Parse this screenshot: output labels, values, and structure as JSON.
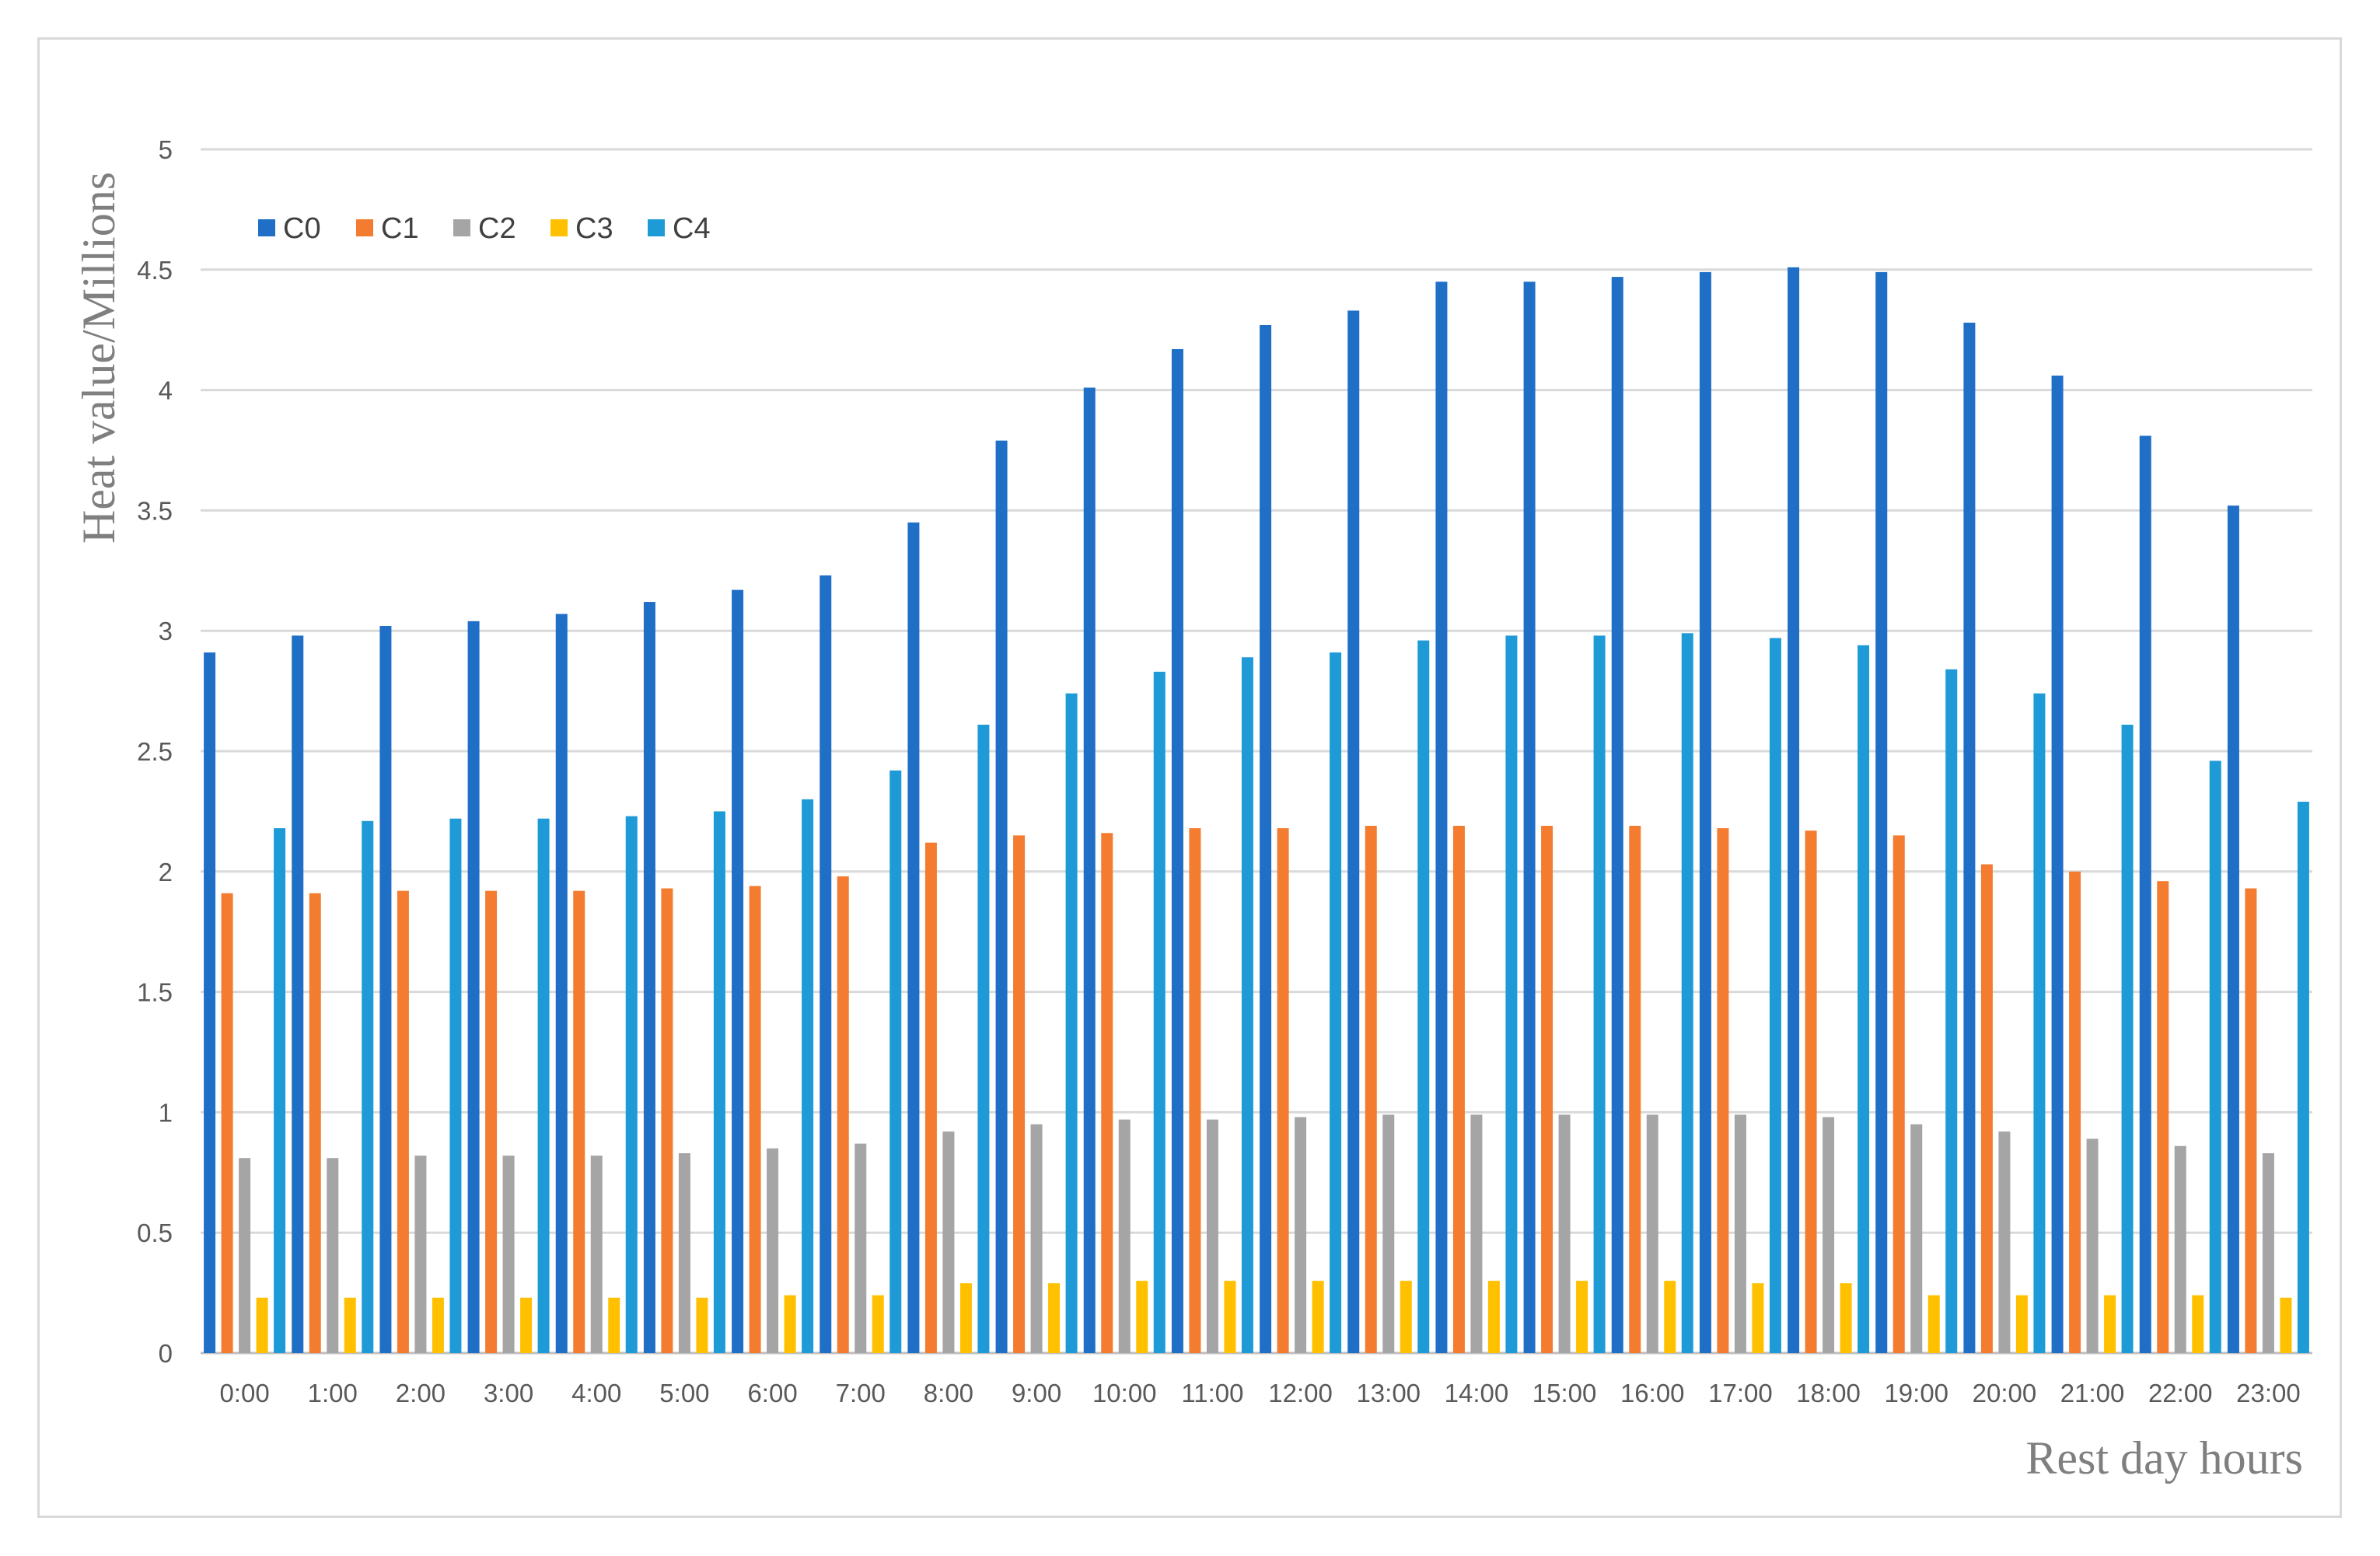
{
  "chart_data": {
    "type": "bar",
    "title": "",
    "xlabel": "Rest day hours",
    "ylabel": "Heat value/Millions",
    "ylim": [
      0,
      5
    ],
    "yticks": [
      "0",
      "0.5",
      "1",
      "1.5",
      "2",
      "2.5",
      "3",
      "3.5",
      "4",
      "4.5",
      "5"
    ],
    "grid": "horizontal",
    "legend_position": "top-left",
    "categories": [
      "0:00",
      "1:00",
      "2:00",
      "3:00",
      "4:00",
      "5:00",
      "6:00",
      "7:00",
      "8:00",
      "9:00",
      "10:00",
      "11:00",
      "12:00",
      "13:00",
      "14:00",
      "15:00",
      "16:00",
      "17:00",
      "18:00",
      "19:00",
      "20:00",
      "21:00",
      "22:00",
      "23:00"
    ],
    "series": [
      {
        "name": "C0",
        "color": "#1f6fc6",
        "values": [
          2.91,
          2.98,
          3.02,
          3.04,
          3.07,
          3.12,
          3.17,
          3.23,
          3.45,
          3.79,
          4.01,
          4.17,
          4.27,
          4.33,
          4.45,
          4.45,
          4.47,
          4.49,
          4.51,
          4.49,
          4.28,
          4.06,
          3.81,
          3.52
        ]
      },
      {
        "name": "C1",
        "color": "#f47c30",
        "values": [
          1.91,
          1.91,
          1.92,
          1.92,
          1.92,
          1.93,
          1.94,
          1.98,
          2.12,
          2.15,
          2.16,
          2.18,
          2.18,
          2.19,
          2.19,
          2.19,
          2.19,
          2.18,
          2.17,
          2.15,
          2.03,
          2.0,
          1.96,
          1.93
        ]
      },
      {
        "name": "C2",
        "color": "#a5a5a5",
        "values": [
          0.81,
          0.81,
          0.82,
          0.82,
          0.82,
          0.83,
          0.85,
          0.87,
          0.92,
          0.95,
          0.97,
          0.97,
          0.98,
          0.99,
          0.99,
          0.99,
          0.99,
          0.99,
          0.98,
          0.95,
          0.92,
          0.89,
          0.86,
          0.83
        ]
      },
      {
        "name": "C3",
        "color": "#ffc000",
        "values": [
          0.23,
          0.23,
          0.23,
          0.23,
          0.23,
          0.23,
          0.24,
          0.24,
          0.29,
          0.29,
          0.3,
          0.3,
          0.3,
          0.3,
          0.3,
          0.3,
          0.3,
          0.29,
          0.29,
          0.24,
          0.24,
          0.24,
          0.24,
          0.23
        ]
      },
      {
        "name": "C4",
        "color": "#1e9bd7",
        "values": [
          2.18,
          2.21,
          2.22,
          2.22,
          2.23,
          2.25,
          2.3,
          2.42,
          2.61,
          2.74,
          2.83,
          2.89,
          2.91,
          2.96,
          2.98,
          2.98,
          2.99,
          2.97,
          2.94,
          2.84,
          2.74,
          2.61,
          2.46,
          2.29
        ]
      }
    ]
  }
}
